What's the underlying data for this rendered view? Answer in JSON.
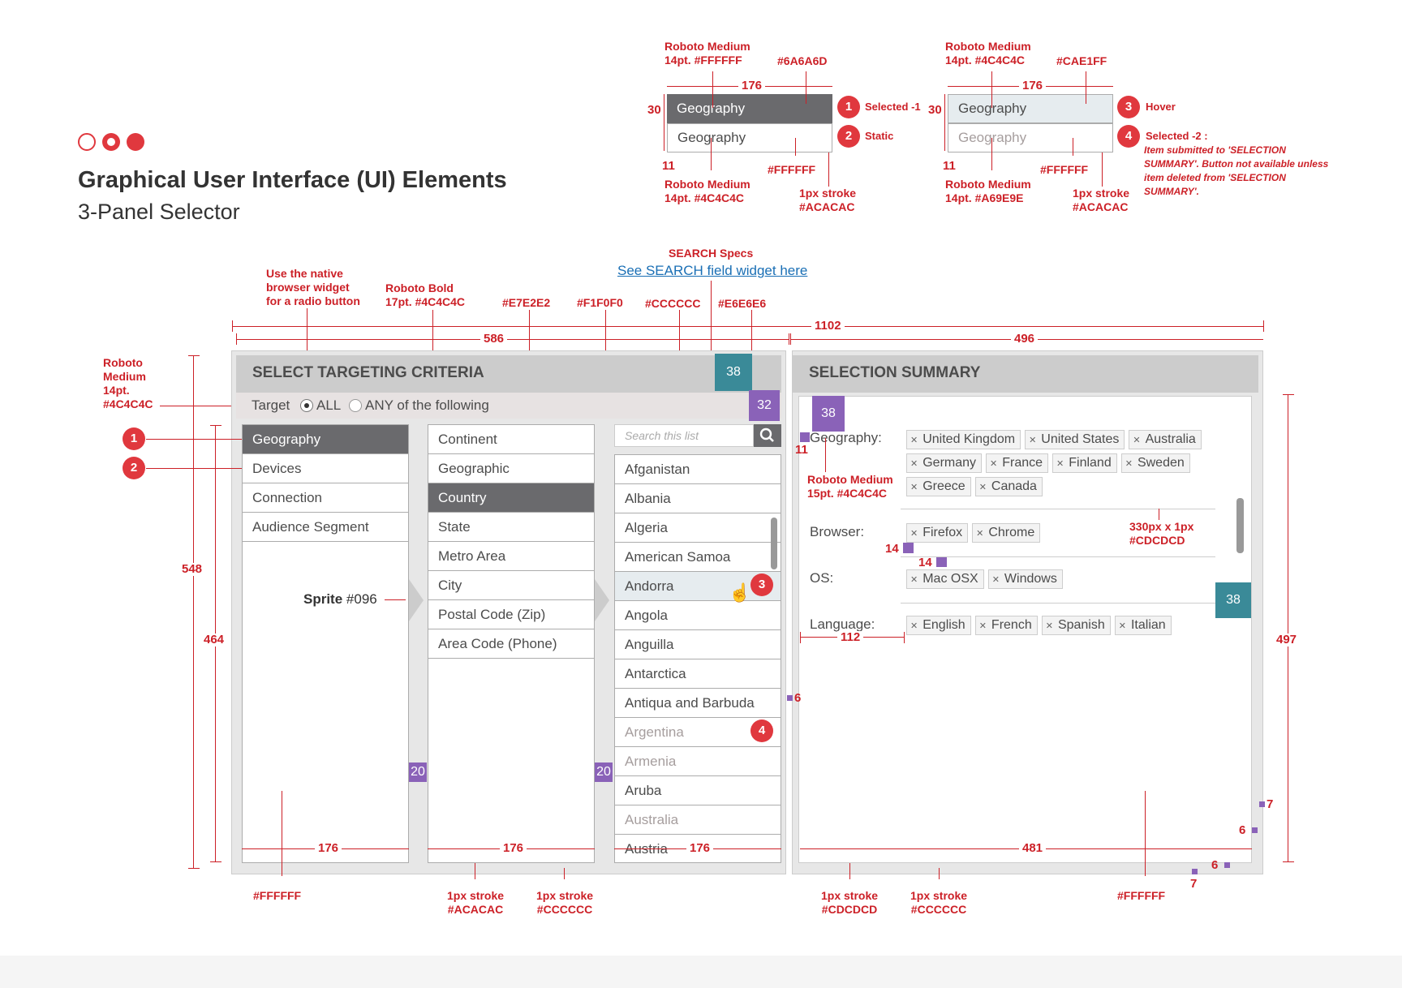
{
  "header": {
    "title": "Graphical User Interface (UI) Elements",
    "subtitle": "3-Panel Selector"
  },
  "top_specs": {
    "a_font_sel": "Roboto Medium\n14pt. #FFFFFF",
    "a_fill_sel": "#6A6A6D",
    "a_width": "176",
    "a_height": "30",
    "a_item_sel": "Geography",
    "a_item_static": "Geography",
    "a_pad": "11",
    "a_fill_static": "#FFFFFF",
    "a_font_static": "Roboto Medium\n14pt. #4C4C4C",
    "a_stroke": "1px stroke\n#ACACAC",
    "legend1": "Selected -1",
    "legend2": "Static",
    "b_font_hover": "Roboto Medium\n14pt. #4C4C4C",
    "b_fill_hover": "#CAE1FF",
    "b_width": "176",
    "b_height": "30",
    "b_item_hover": "Geography",
    "b_item_dis": "Geography",
    "b_pad": "11",
    "b_fill_dis": "#FFFFFF",
    "b_font_dis": "Roboto Medium\n14pt. #A69E9E",
    "b_stroke": "1px stroke\n#ACACAC",
    "legend3": "Hover",
    "legend4_title": "Selected -2 :",
    "legend4_body": " Item submitted to 'SELECTION SUMMARY'. Button not available unless item deleted from 'SELECTION SUMMARY'."
  },
  "annotations": {
    "search_specs": "SEARCH Specs",
    "search_link": "See SEARCH field widget here",
    "radio_note": "Use the native\nbrowser widget\nfor a radio button",
    "title_font": "Roboto Bold\n17pt. #4C4C4C",
    "c_e7": "#E7E2E2",
    "c_f1": "#F1F0F0",
    "c_cc": "#CCCCCC",
    "c_e6": "#E6E6E6",
    "target_font": "Roboto\nMedium\n14pt.\n#4C4C4C",
    "sprite_label": "Sprite",
    "sprite_code": "#096",
    "summary_font": "Roboto Medium\n15pt. #4C4C4C",
    "divider_spec": "330px x 1px\n#CDCDCD",
    "bottom_ffffff": "#FFFFFF",
    "bottom_acacac": "1px stroke\n#ACACAC",
    "bottom_cccccc": "1px stroke\n#CCCCCC",
    "bottom_cdcdcd": "1px stroke\n#CDCDCD",
    "bottom_cccccc2": "1px stroke\n#CCCCCC",
    "bottom_ffffff2": "#FFFFFF"
  },
  "dims": {
    "total": "1102",
    "left": "586",
    "right": "496",
    "h548": "548",
    "h464": "464",
    "h497": "497",
    "col1": "176",
    "col2": "176",
    "col3": "176",
    "sum": "481",
    "label_w": "112",
    "d11": "11",
    "d14a": "14",
    "d14b": "14",
    "d6": "6",
    "d7a": "7",
    "d6b": "6",
    "d6c": "6",
    "d7b": "7",
    "b38a": "38",
    "b38b": "38",
    "b38c": "38",
    "b32": "32",
    "b20a": "20",
    "b20b": "20"
  },
  "left_panel": {
    "title": "SELECT TARGETING CRITERIA",
    "target_label": "Target",
    "radio_all": "ALL",
    "radio_any": "ANY of the following",
    "search_placeholder": "Search this list",
    "col1": [
      "Geography",
      "Devices",
      "Connection",
      "Audience Segment"
    ],
    "col2": [
      "Continent",
      "Geographic",
      "Country",
      "State",
      "Metro Area",
      "City",
      "Postal Code (Zip)",
      "Area Code (Phone)"
    ],
    "col3": [
      "Afganistan",
      "Albania",
      "Algeria",
      "American Samoa",
      "Andorra",
      "Angola",
      "Anguilla",
      "Antarctica",
      "Antiqua and Barbuda",
      "Argentina",
      "Armenia",
      "Aruba",
      "Australia",
      "Austria"
    ]
  },
  "right_panel": {
    "title": "SELECTION SUMMARY",
    "geo_label": "Geography:",
    "geo_tags": [
      "United Kingdom",
      "United States",
      "Australia",
      "Germany",
      "France",
      "Finland",
      "Sweden",
      "Greece",
      "Canada"
    ],
    "browser_label": "Browser:",
    "browser_tags": [
      "Firefox",
      "Chrome"
    ],
    "os_label": "OS:",
    "os_tags": [
      "Mac OSX",
      "Windows"
    ],
    "lang_label": "Language:",
    "lang_tags": [
      "English",
      "French",
      "Spanish",
      "Italian"
    ]
  },
  "markers": {
    "m1": "1",
    "m2": "2",
    "m3": "3",
    "m4": "4"
  },
  "colors": {
    "accent": "#cc2027",
    "selected": "#6a6a6d",
    "teal": "#3a8a98",
    "purple": "#8a62b8"
  }
}
